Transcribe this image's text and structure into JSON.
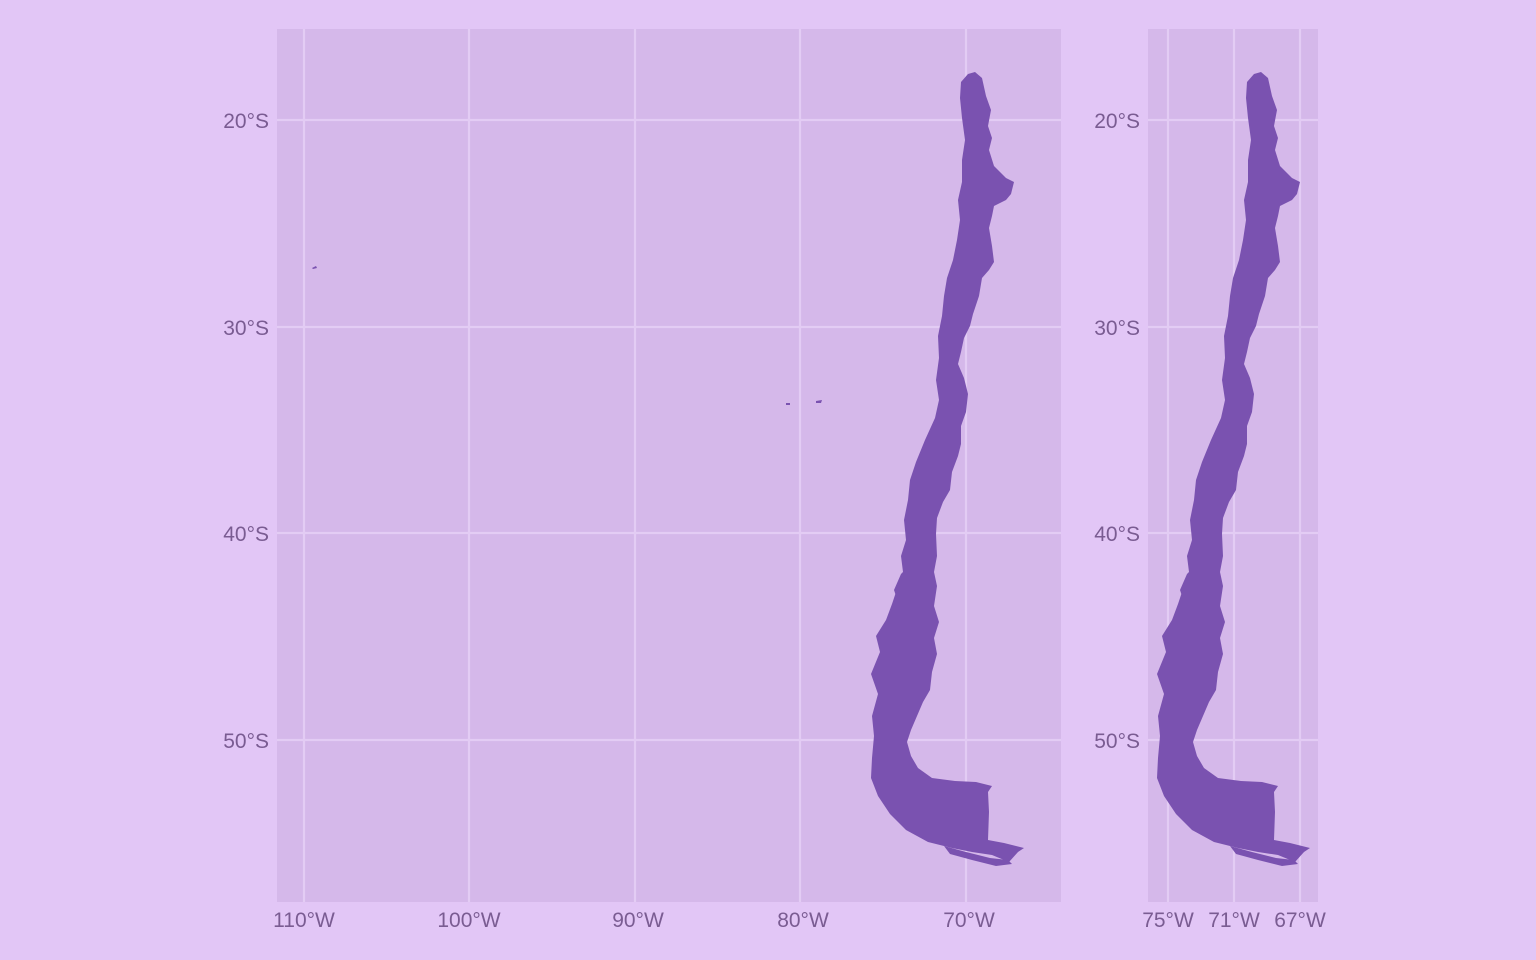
{
  "colors": {
    "page_background": "#e2c6f6",
    "panel_background": "#d5b8ea",
    "grid": "#e3ccf4",
    "land_fill": "#7a52b0",
    "axis_text": "#7a5c92"
  },
  "maps": [
    {
      "id": "full",
      "region": "Chile",
      "x_ticks": [
        {
          "label": "110°W",
          "lon": -110
        },
        {
          "label": "100°W",
          "lon": -100
        },
        {
          "label": "90°W",
          "lon": -90
        },
        {
          "label": "80°W",
          "lon": -80
        },
        {
          "label": "70°W",
          "lon": -70
        }
      ],
      "y_ticks": [
        {
          "label": "20°S",
          "lat": -20
        },
        {
          "label": "30°S",
          "lat": -30
        },
        {
          "label": "40°S",
          "lat": -40
        },
        {
          "label": "50°S",
          "lat": -50
        }
      ]
    },
    {
      "id": "mainland",
      "region": "Chile (mainland)",
      "x_ticks": [
        {
          "label": "75°W",
          "lon": -75
        },
        {
          "label": "71°W",
          "lon": -71
        },
        {
          "label": "67°W",
          "lon": -67
        }
      ],
      "y_ticks": [
        {
          "label": "20°S",
          "lat": -20
        },
        {
          "label": "30°S",
          "lat": -30
        },
        {
          "label": "40°S",
          "lat": -40
        },
        {
          "label": "50°S",
          "lat": -50
        }
      ]
    }
  ]
}
